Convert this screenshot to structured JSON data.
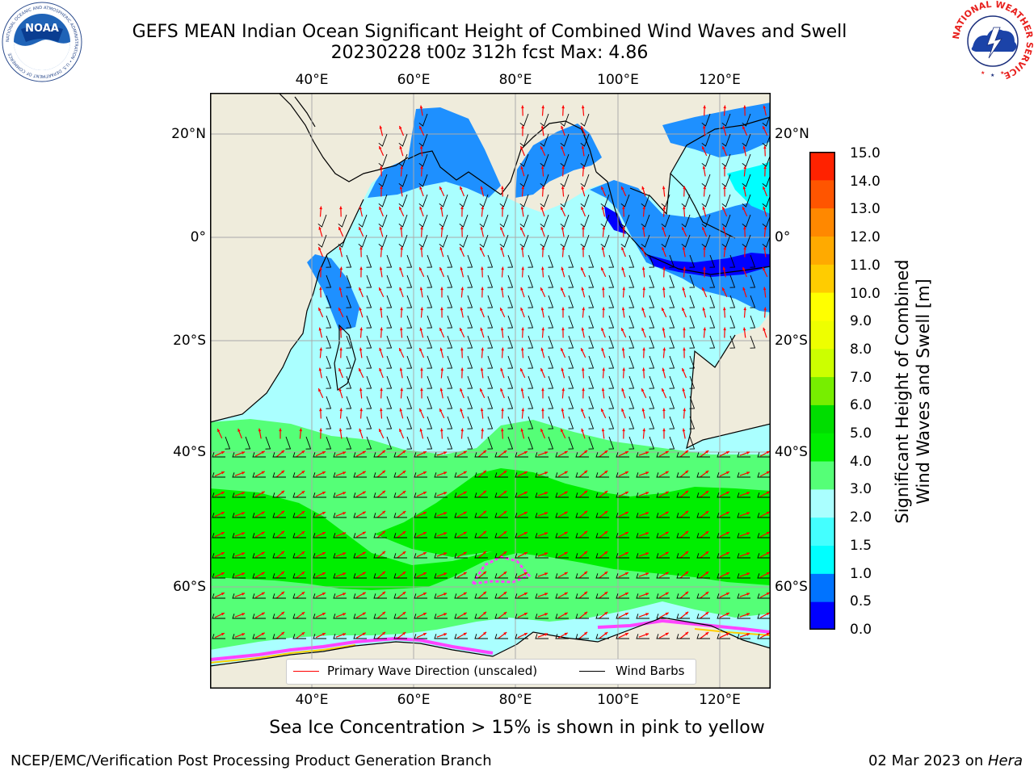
{
  "title": {
    "line1": "GEFS MEAN Indian Ocean Significant Height of Combined Wind Waves and Swell",
    "line2": "20230228 t00z 312h fcst   Max: 4.86"
  },
  "map": {
    "lon_ticks": [
      "40°E",
      "60°E",
      "80°E",
      "100°E",
      "120°E"
    ],
    "lat_ticks": [
      "20°N",
      "0°",
      "20°S",
      "40°S",
      "60°S"
    ],
    "land_color": "#efecdc",
    "ice_colors": [
      "#ff44ff",
      "#ffcc00",
      "#ffffff"
    ]
  },
  "colorbar": {
    "label_line1": "Significant Height of Combined",
    "label_line2": "Wind Waves and Swell [m]",
    "ticks": [
      "15.0",
      "14.0",
      "13.0",
      "12.0",
      "11.0",
      "10.0",
      "9.0",
      "8.0",
      "7.0",
      "6.0",
      "5.0",
      "4.0",
      "3.0",
      "2.0",
      "1.5",
      "1.0",
      "0.5",
      "0.0"
    ],
    "bins_bottom_to_top": [
      {
        "range": "0.0-0.5",
        "color": "#0000ff"
      },
      {
        "range": "0.5-1.0",
        "color": "#0073ff"
      },
      {
        "range": "1.0-1.5",
        "color": "#00ffff"
      },
      {
        "range": "1.5-2.0",
        "color": "#44ffff"
      },
      {
        "range": "2.0-3.0",
        "color": "#aaffff"
      },
      {
        "range": "3.0-4.0",
        "color": "#55ff77"
      },
      {
        "range": "4.0-5.0",
        "color": "#00ee00"
      },
      {
        "range": "5.0-6.0",
        "color": "#00dd00"
      },
      {
        "range": "6.0-7.0",
        "color": "#77ee00"
      },
      {
        "range": "7.0-8.0",
        "color": "#ccff00"
      },
      {
        "range": "8.0-9.0",
        "color": "#eeff00"
      },
      {
        "range": "9.0-10.0",
        "color": "#ffff00"
      },
      {
        "range": "10.0-11.0",
        "color": "#ffcc00"
      },
      {
        "range": "11.0-12.0",
        "color": "#ffaa00"
      },
      {
        "range": "12.0-13.0",
        "color": "#ff8800"
      },
      {
        "range": "13.0-14.0",
        "color": "#ff5500"
      },
      {
        "range": "14.0-15.0",
        "color": "#ff2200"
      },
      {
        "range": "15.0",
        "color": "#ff0000"
      }
    ]
  },
  "legend": {
    "wave_label": "Primary Wave Direction (unscaled)",
    "wave_color": "#ff0000",
    "barb_label": "Wind Barbs",
    "barb_color": "#000000"
  },
  "footer": {
    "ice_note": "Sea Ice Concentration > 15% is shown in pink to yellow",
    "credit": "NCEP/EMC/Verification Post Processing Product Generation Branch",
    "date_prefix": "02 Mar 2023 on ",
    "machine": "Hera"
  },
  "logos": {
    "noaa_text": "NOAA",
    "noaa_ring_text": "NATIONAL OCEANIC AND ATMOSPHERIC ADMINISTRATION • U.S. DEPARTMENT OF COMMERCE",
    "nws_ring_text": "NATIONAL WEATHER SERVICE"
  }
}
